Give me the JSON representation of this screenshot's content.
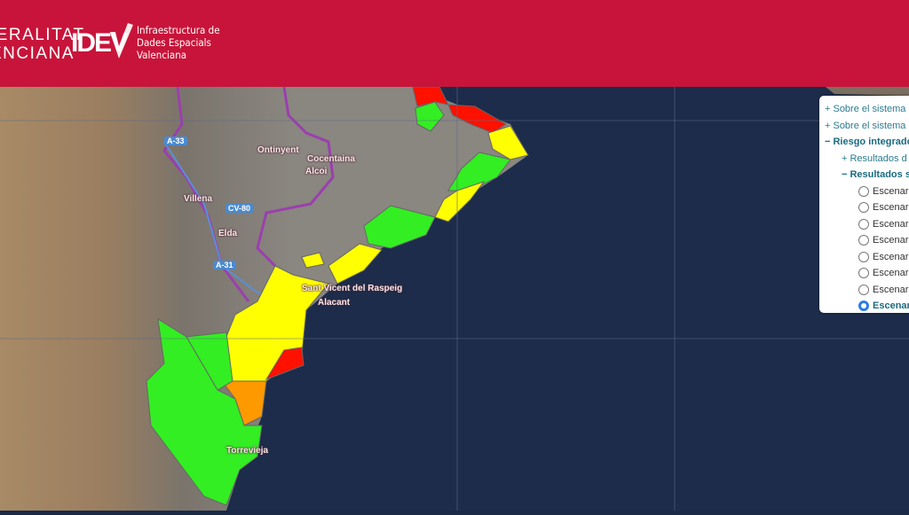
{
  "header": {
    "gva_line1": "GENERALITAT",
    "gva_line2": "VALENCIANA",
    "idev_logo": "IDEV",
    "idev_text": [
      "Infraestructura de",
      "Dades Espacials",
      "Valenciana"
    ],
    "color": "#c8143a"
  },
  "map": {
    "places": [
      "Ontinyent",
      "Cocentaina",
      "Alcoi",
      "Villena",
      "Elda",
      "Sant Vicent del Raspeig",
      "Alacant",
      "Torrevieja"
    ],
    "roads": [
      "A-33",
      "CV-80",
      "A-31"
    ],
    "risk_colors": {
      "low": "#33ee22",
      "medium": "#ffff00",
      "high": "#ff9900",
      "very_high": "#ff1100"
    }
  },
  "panel": {
    "items": [
      "+ Sobre el sistema",
      "+ Sobre el sistema",
      "− Riesgo integrado",
      "+ Resultados d",
      "− Resultados s"
    ],
    "scenarios": [
      "Escenar",
      "Escenar",
      "Escenar",
      "Escenar",
      "Escenar",
      "Escenar",
      "Escenar",
      "Escenar"
    ],
    "selected_index": 7
  }
}
